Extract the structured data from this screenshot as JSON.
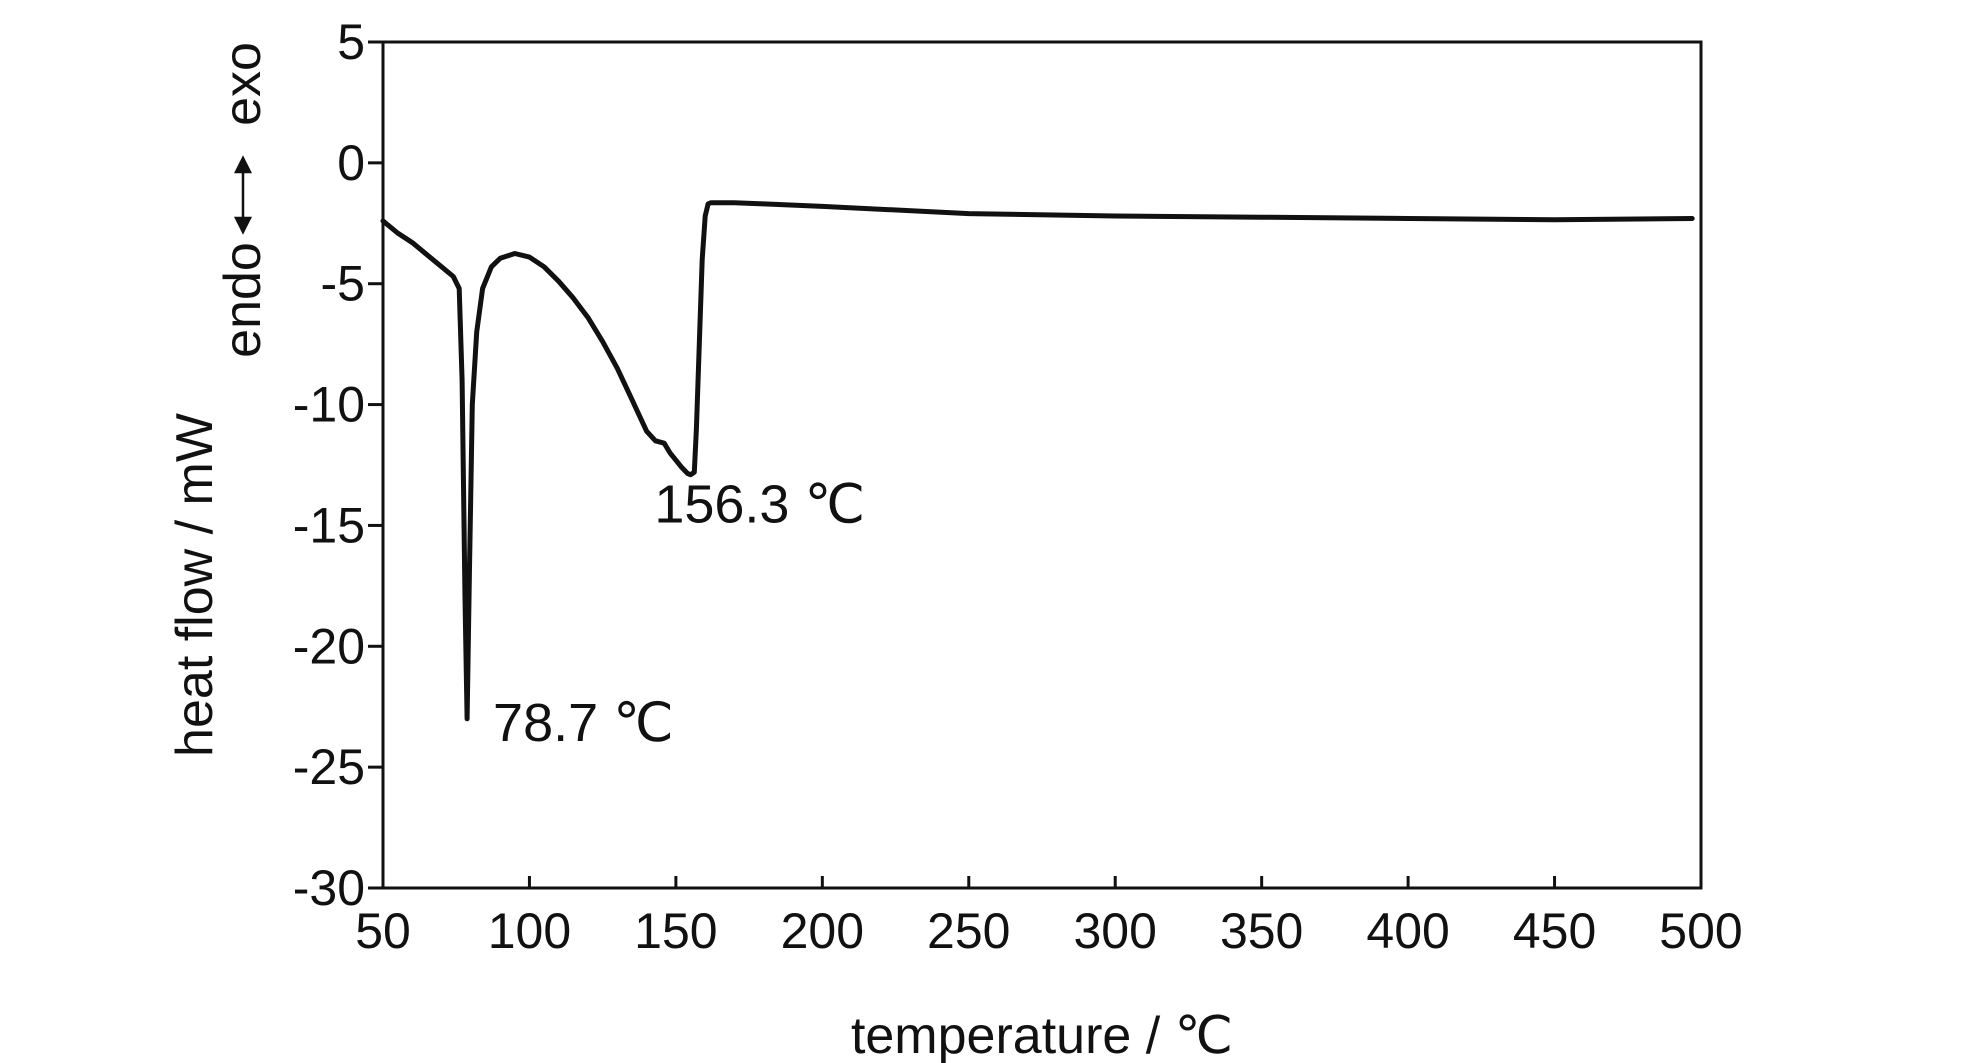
{
  "chart_data": {
    "type": "line",
    "xlabel": "temperature / ℃",
    "ylabel": "heat flow / mW",
    "direction_label": {
      "endo": "endo",
      "exo": "exo"
    },
    "xlim": [
      50,
      500
    ],
    "ylim": [
      -30,
      5
    ],
    "xticks": [
      50,
      100,
      150,
      200,
      250,
      300,
      350,
      400,
      450,
      500
    ],
    "yticks": [
      5,
      0,
      -5,
      -10,
      -15,
      -20,
      -25,
      -30
    ],
    "grid": false,
    "line_color": "#111111",
    "series": [
      {
        "x": [
          50,
          55,
          60,
          65,
          70,
          74,
          76,
          77,
          78,
          78.7,
          79.5,
          80.5,
          82,
          84,
          87,
          90,
          95,
          100,
          105,
          110,
          115,
          120,
          125,
          130,
          135,
          140,
          143,
          146,
          148,
          150,
          152,
          154,
          155,
          156.3,
          157,
          158,
          159,
          160,
          161,
          162,
          170,
          180,
          200,
          250,
          300,
          350,
          400,
          450,
          497
        ],
        "y": [
          -2.4,
          -2.9,
          -3.3,
          -3.8,
          -4.3,
          -4.7,
          -5.2,
          -9.0,
          -18.0,
          -23.0,
          -17.0,
          -10.0,
          -7.0,
          -5.2,
          -4.3,
          -3.95,
          -3.75,
          -3.9,
          -4.3,
          -4.9,
          -5.6,
          -6.4,
          -7.4,
          -8.5,
          -9.8,
          -11.1,
          -11.5,
          -11.6,
          -12.0,
          -12.3,
          -12.6,
          -12.85,
          -12.9,
          -12.8,
          -11.0,
          -7.5,
          -4.0,
          -2.2,
          -1.7,
          -1.65,
          -1.65,
          -1.7,
          -1.8,
          -2.1,
          -2.2,
          -2.25,
          -2.3,
          -2.35,
          -2.3
        ]
      }
    ],
    "annotations": [
      {
        "text": "78.7 ℃",
        "x": 78.7,
        "y": -23.0
      },
      {
        "text": "156.3 ℃",
        "x": 156.3,
        "y": -12.9
      }
    ]
  }
}
